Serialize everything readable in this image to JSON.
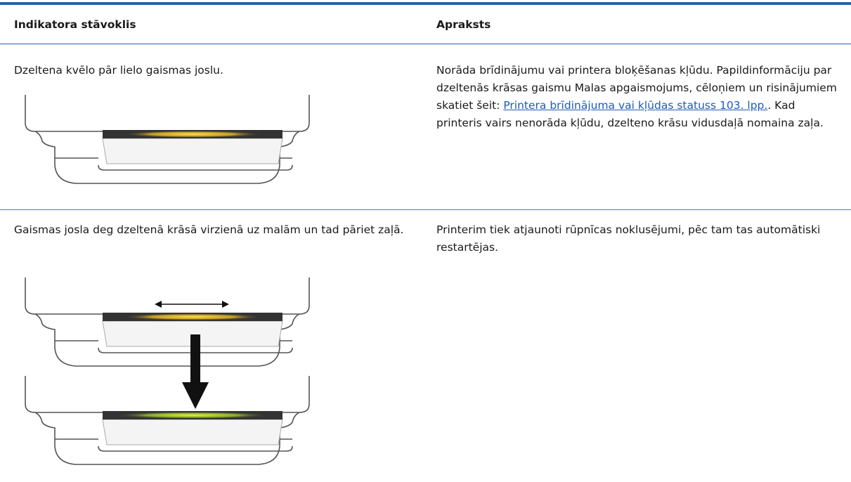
{
  "table": {
    "headers": [
      "Indikatora stāvoklis",
      "Apraksts"
    ],
    "rows": [
      {
        "state": "Dzeltena kvēlo pār lielo gaismas joslu.",
        "description": {
          "before": "Norāda brīdinājumu vai printera bloķēšanas kļūdu. Papildinformāciju par dzeltenās krāsas gaismu Malas apgaismojums, cēloņiem un risinājumiem skatiet šeit: ",
          "link": "Printera brīdinājuma vai kļūdas statuss 103. lpp.",
          "after": ". Kad printeris vairs nenorāda kļūdu, dzelteno krāsu vidusdaļā nomaina zaļa."
        }
      },
      {
        "state": "Gaismas josla deg dzeltenā krāsā virzienā uz malām un tad pāriet zaļā.",
        "description": {
          "before": "Printerim tiek atjaunoti rūpnīcas noklusējumi, pēc tam tas automātiski restartējas."
        }
      }
    ]
  }
}
